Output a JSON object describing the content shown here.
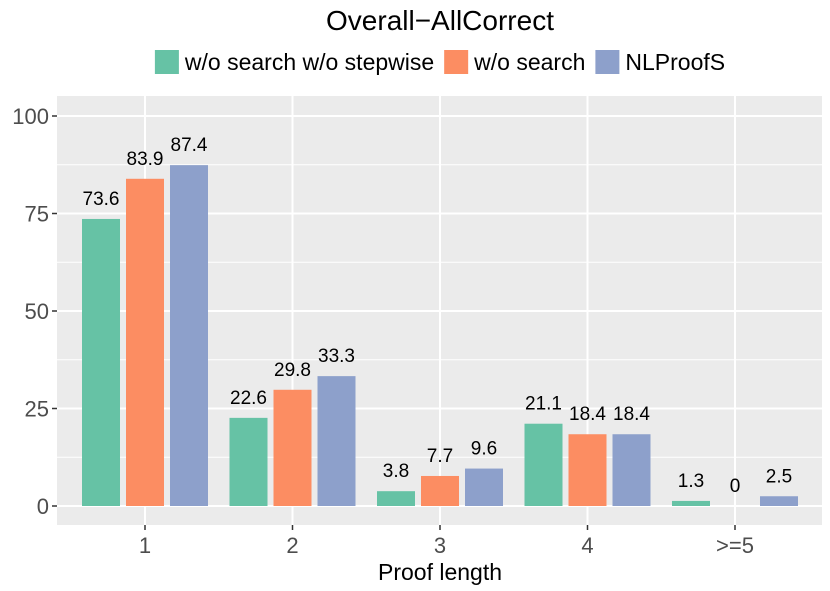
{
  "chart_data": {
    "type": "bar",
    "title": "Overall−AllCorrect",
    "xlabel": "Proof length",
    "ylabel": "",
    "categories": [
      "1",
      "2",
      "3",
      "4",
      ">=5"
    ],
    "series": [
      {
        "name": "w/o search w/o stepwise",
        "color": "#66c2a5",
        "values": [
          73.6,
          22.6,
          3.8,
          21.1,
          1.3
        ]
      },
      {
        "name": "w/o search",
        "color": "#fc8d62",
        "values": [
          83.9,
          29.8,
          7.7,
          18.4,
          0
        ]
      },
      {
        "name": "NLProofS",
        "color": "#8da0cb",
        "values": [
          87.4,
          33.3,
          9.6,
          18.4,
          2.5
        ]
      }
    ],
    "value_labels": [
      [
        "73.6",
        "22.6",
        "3.8",
        "21.1",
        "1.3"
      ],
      [
        "83.9",
        "29.8",
        "7.7",
        "18.4",
        "0"
      ],
      [
        "87.4",
        "33.3",
        "9.6",
        "18.4",
        "2.5"
      ]
    ],
    "ylim": [
      0,
      100
    ],
    "yticks": [
      0,
      25,
      50,
      75,
      100
    ],
    "ytick_labels": [
      "0",
      "25",
      "50",
      "75",
      "100"
    ],
    "grid": true,
    "legend_position": "top",
    "panel_background": "#ebebeb"
  }
}
